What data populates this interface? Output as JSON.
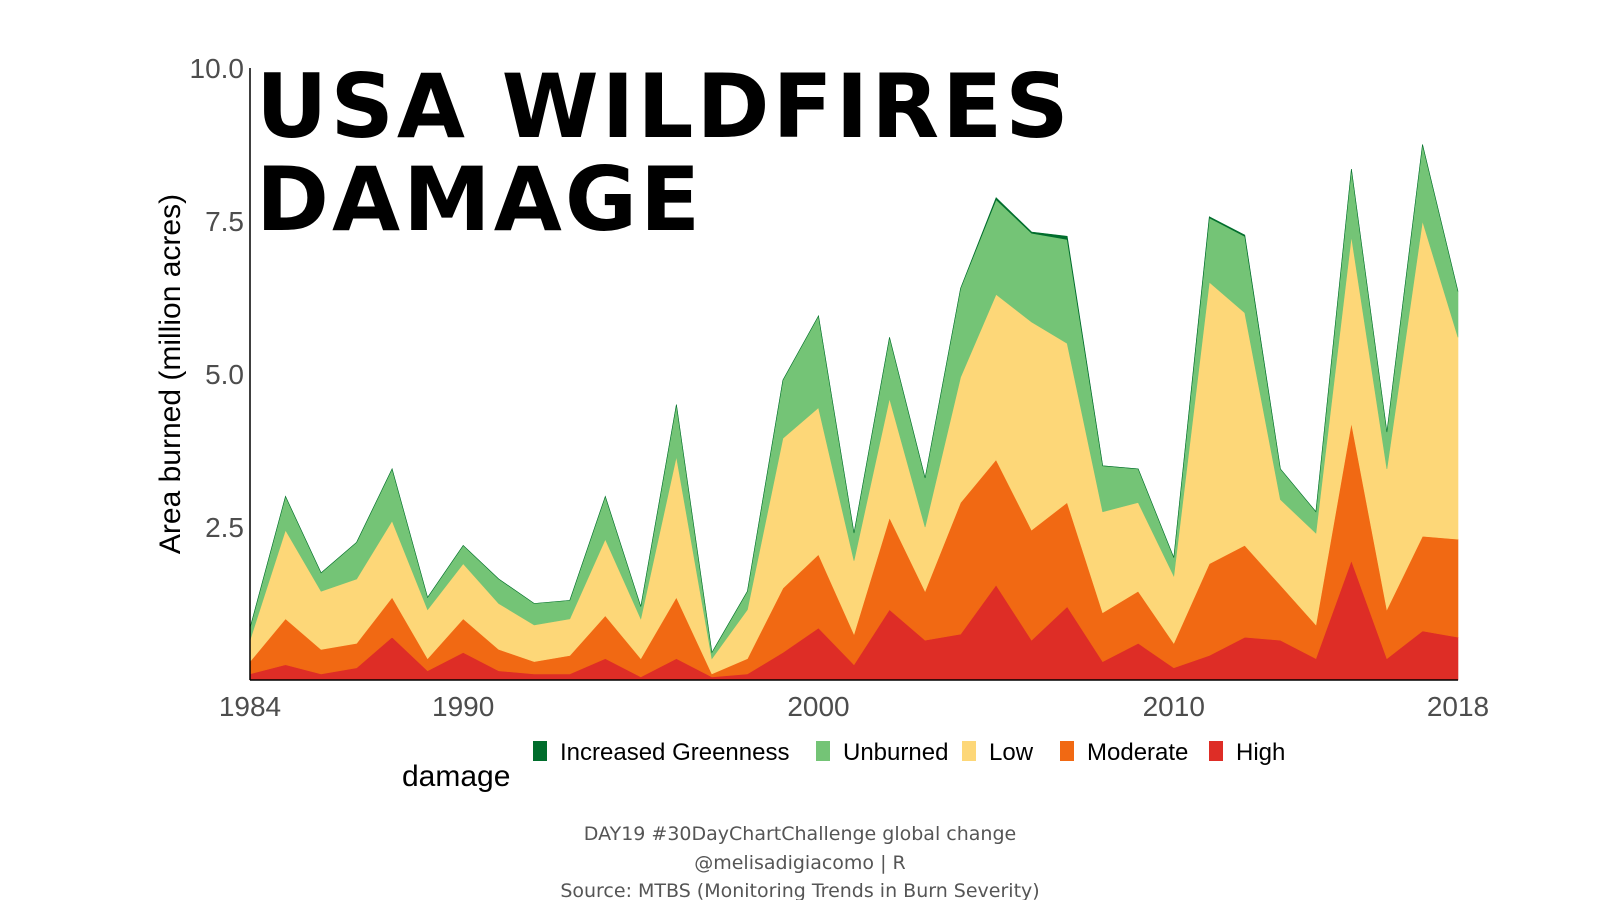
{
  "chart_data": {
    "type": "area",
    "stacked": true,
    "title": "USA WILDFIRES\nDAMAGE",
    "xlabel": "",
    "ylabel": "Area burned (million acres)",
    "xlim": [
      1984,
      2018
    ],
    "ylim": [
      0,
      10
    ],
    "x_ticks": [
      1984,
      1990,
      2000,
      2010,
      2018
    ],
    "y_ticks": [
      2.5,
      5.0,
      7.5,
      10.0
    ],
    "y_tick_labels": [
      "2.5",
      "5.0",
      "7.5",
      "10.0"
    ],
    "grid": false,
    "legend": {
      "title": "damage",
      "position": "bottom",
      "entries": [
        "Increased Greenness",
        "Unburned",
        "Low",
        "Moderate",
        "High"
      ]
    },
    "x": [
      1984,
      1985,
      1986,
      1987,
      1988,
      1989,
      1990,
      1991,
      1992,
      1993,
      1994,
      1995,
      1996,
      1997,
      1998,
      1999,
      2000,
      2001,
      2002,
      2003,
      2004,
      2005,
      2006,
      2007,
      2008,
      2009,
      2010,
      2011,
      2012,
      2013,
      2014,
      2015,
      2016,
      2017,
      2018
    ],
    "series": [
      {
        "name": "High",
        "color": "#de2d26",
        "values": [
          0.1,
          0.25,
          0.1,
          0.2,
          0.7,
          0.15,
          0.45,
          0.15,
          0.1,
          0.1,
          0.35,
          0.05,
          0.35,
          0.05,
          0.1,
          0.45,
          0.85,
          0.25,
          1.15,
          0.65,
          0.75,
          1.55,
          0.65,
          1.2,
          0.3,
          0.6,
          0.2,
          0.4,
          0.7,
          0.65,
          0.35,
          1.95,
          0.35,
          0.8,
          0.7
        ]
      },
      {
        "name": "Moderate",
        "color": "#f16913",
        "values": [
          0.2,
          0.75,
          0.4,
          0.4,
          0.65,
          0.2,
          0.55,
          0.35,
          0.2,
          0.3,
          0.7,
          0.3,
          1.0,
          0.05,
          0.25,
          1.05,
          1.2,
          0.5,
          1.5,
          0.8,
          2.15,
          2.05,
          1.8,
          1.7,
          0.8,
          0.85,
          0.4,
          1.5,
          1.5,
          0.9,
          0.55,
          2.25,
          0.8,
          1.55,
          1.6
        ]
      },
      {
        "name": "Low",
        "color": "#fdd778",
        "values": [
          0.35,
          1.45,
          0.95,
          1.05,
          1.25,
          0.8,
          0.9,
          0.75,
          0.6,
          0.6,
          1.25,
          0.65,
          2.3,
          0.25,
          0.8,
          2.45,
          2.4,
          1.2,
          1.95,
          1.05,
          2.05,
          2.7,
          3.4,
          2.6,
          1.65,
          1.45,
          1.1,
          4.6,
          3.8,
          1.4,
          1.5,
          3.05,
          2.3,
          5.15,
          3.3
        ]
      },
      {
        "name": "Unburned",
        "color": "#74c476",
        "values": [
          0.2,
          0.55,
          0.3,
          0.6,
          0.85,
          0.2,
          0.3,
          0.4,
          0.35,
          0.3,
          0.7,
          0.2,
          0.85,
          0.1,
          0.3,
          0.95,
          1.5,
          0.45,
          1.0,
          0.8,
          1.45,
          1.55,
          1.45,
          1.7,
          0.75,
          0.55,
          0.3,
          1.05,
          1.25,
          0.5,
          0.35,
          1.1,
          0.6,
          1.25,
          0.75
        ]
      },
      {
        "name": "Increased Greenness",
        "color": "#006d2c",
        "values": [
          0,
          0,
          0,
          0,
          0,
          0,
          0,
          0,
          0,
          0,
          0,
          0,
          0,
          0,
          0,
          0,
          0,
          0,
          0,
          0,
          0,
          0.03,
          0.02,
          0.05,
          0,
          0,
          0,
          0.02,
          0.02,
          0,
          0,
          0,
          0,
          0,
          0
        ]
      }
    ]
  },
  "caption": {
    "line1": "DAY19 #30DayChartChallenge global change",
    "line2": "@melisadigiacomo | R",
    "line3": "Source: MTBS (Monitoring Trends in Burn Severity)"
  }
}
